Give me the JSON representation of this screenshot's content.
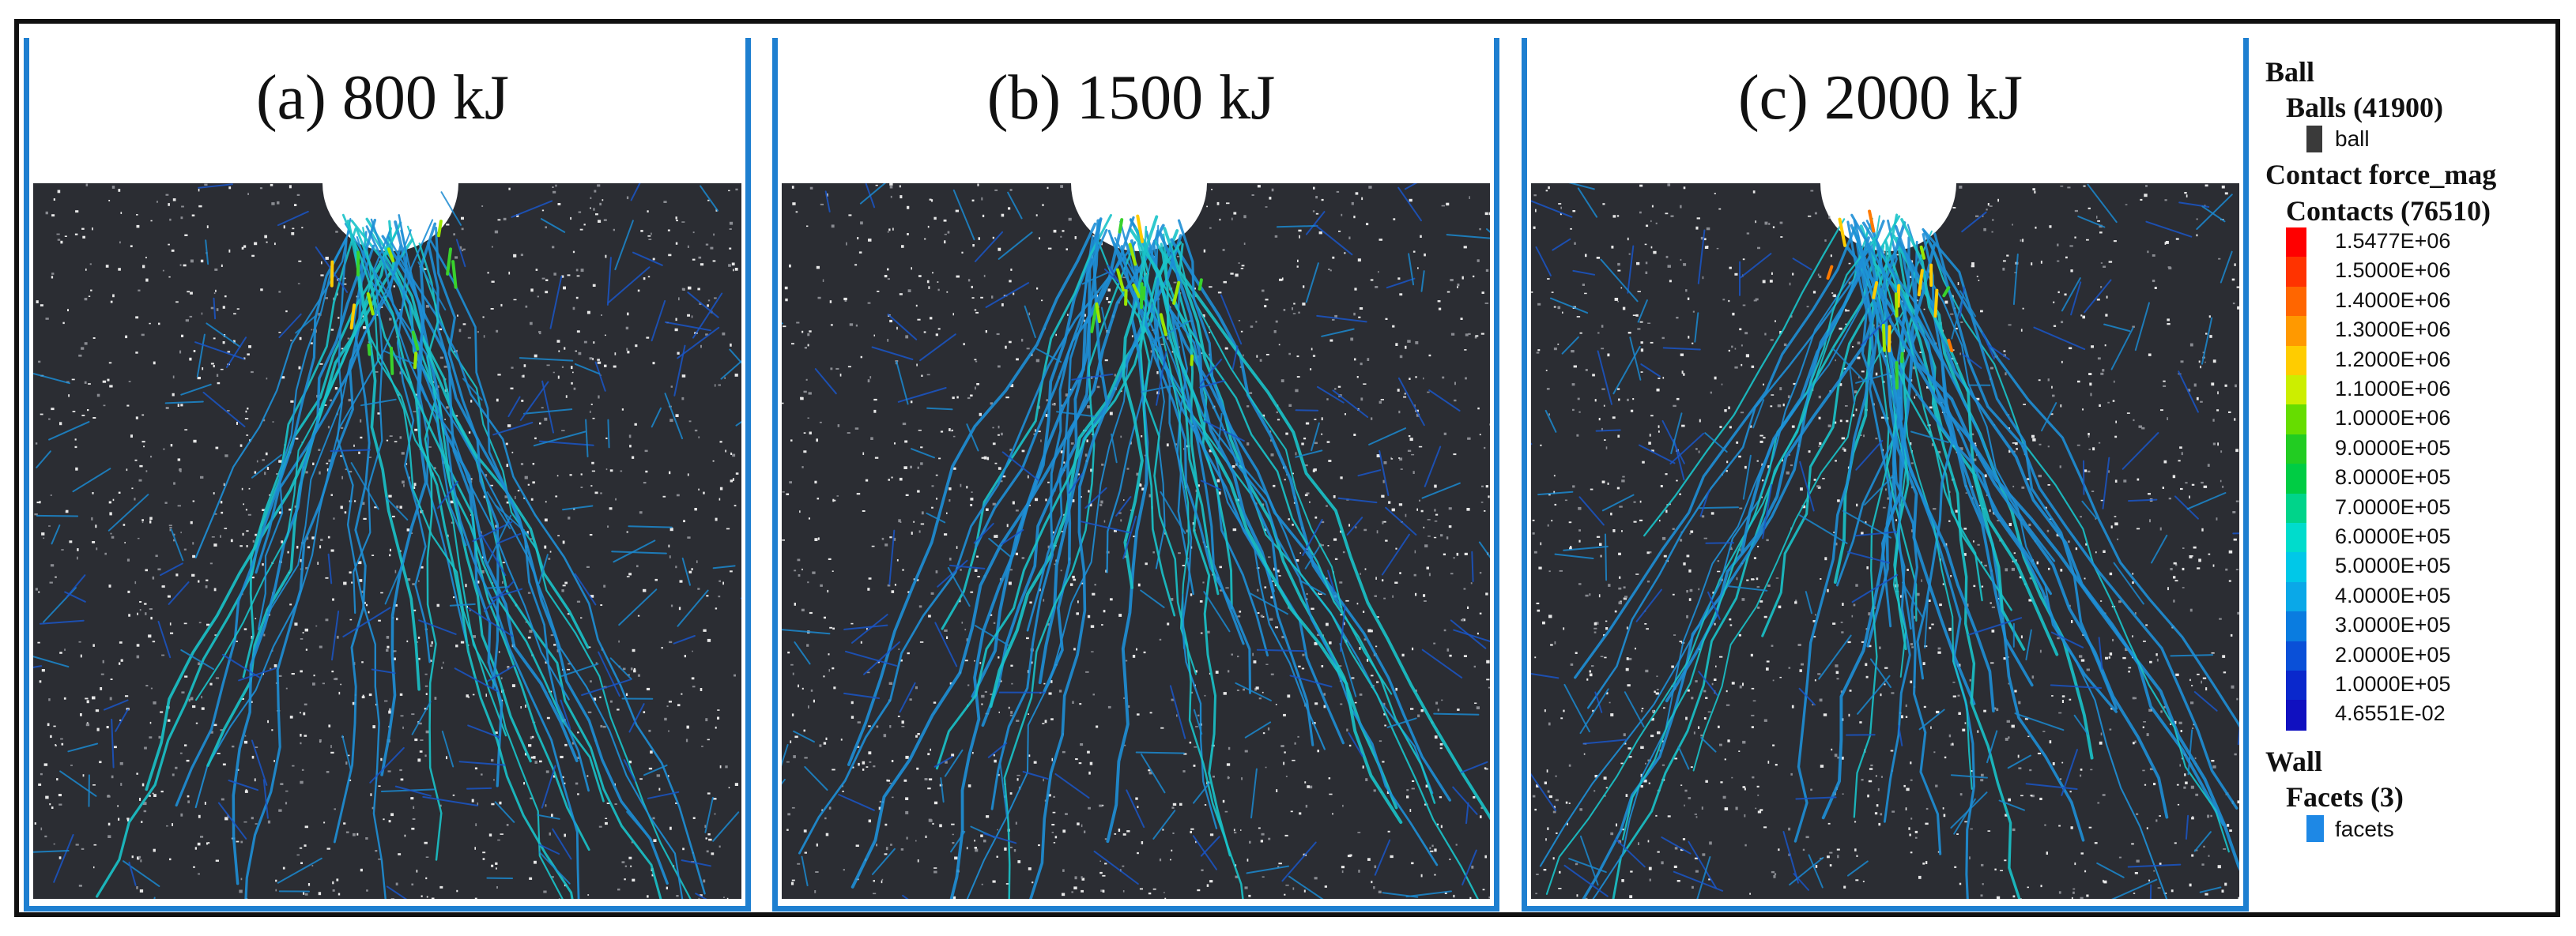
{
  "panels": [
    {
      "title": "(a) 800 kJ",
      "intensity": 0.55
    },
    {
      "title": "(b) 1500 kJ",
      "intensity": 0.8
    },
    {
      "title": "(c) 2000 kJ",
      "intensity": 1.0
    }
  ],
  "legend": {
    "ball_heading": "Ball",
    "balls_group": "Balls (41900)",
    "ball_item": "ball",
    "ball_color": "#3a3a3a",
    "contact_heading": "Contact force_mag",
    "contacts_group": "Contacts (76510)",
    "colorbar_labels": [
      "1.5477E+06",
      "1.5000E+06",
      "1.4000E+06",
      "1.3000E+06",
      "1.2000E+06",
      "1.1000E+06",
      "1.0000E+06",
      "9.0000E+05",
      "8.0000E+05",
      "7.0000E+05",
      "6.0000E+05",
      "5.0000E+05",
      "4.0000E+05",
      "3.0000E+05",
      "2.0000E+05",
      "1.0000E+05",
      "4.6551E-02"
    ],
    "colorbar_colors": [
      "#ff0000",
      "#ff3300",
      "#ff6600",
      "#ff9900",
      "#ffcc00",
      "#ccee00",
      "#66dd00",
      "#22cc22",
      "#00cc44",
      "#00d48a",
      "#00dccc",
      "#00c8e8",
      "#0aa8e8",
      "#0a7ce0",
      "#0a50d8",
      "#0a28cc",
      "#1010c0"
    ],
    "wall_heading": "Wall",
    "facets_group": "Facets (3)",
    "facets_item": "facets",
    "facets_color": "#1e88e5"
  }
}
